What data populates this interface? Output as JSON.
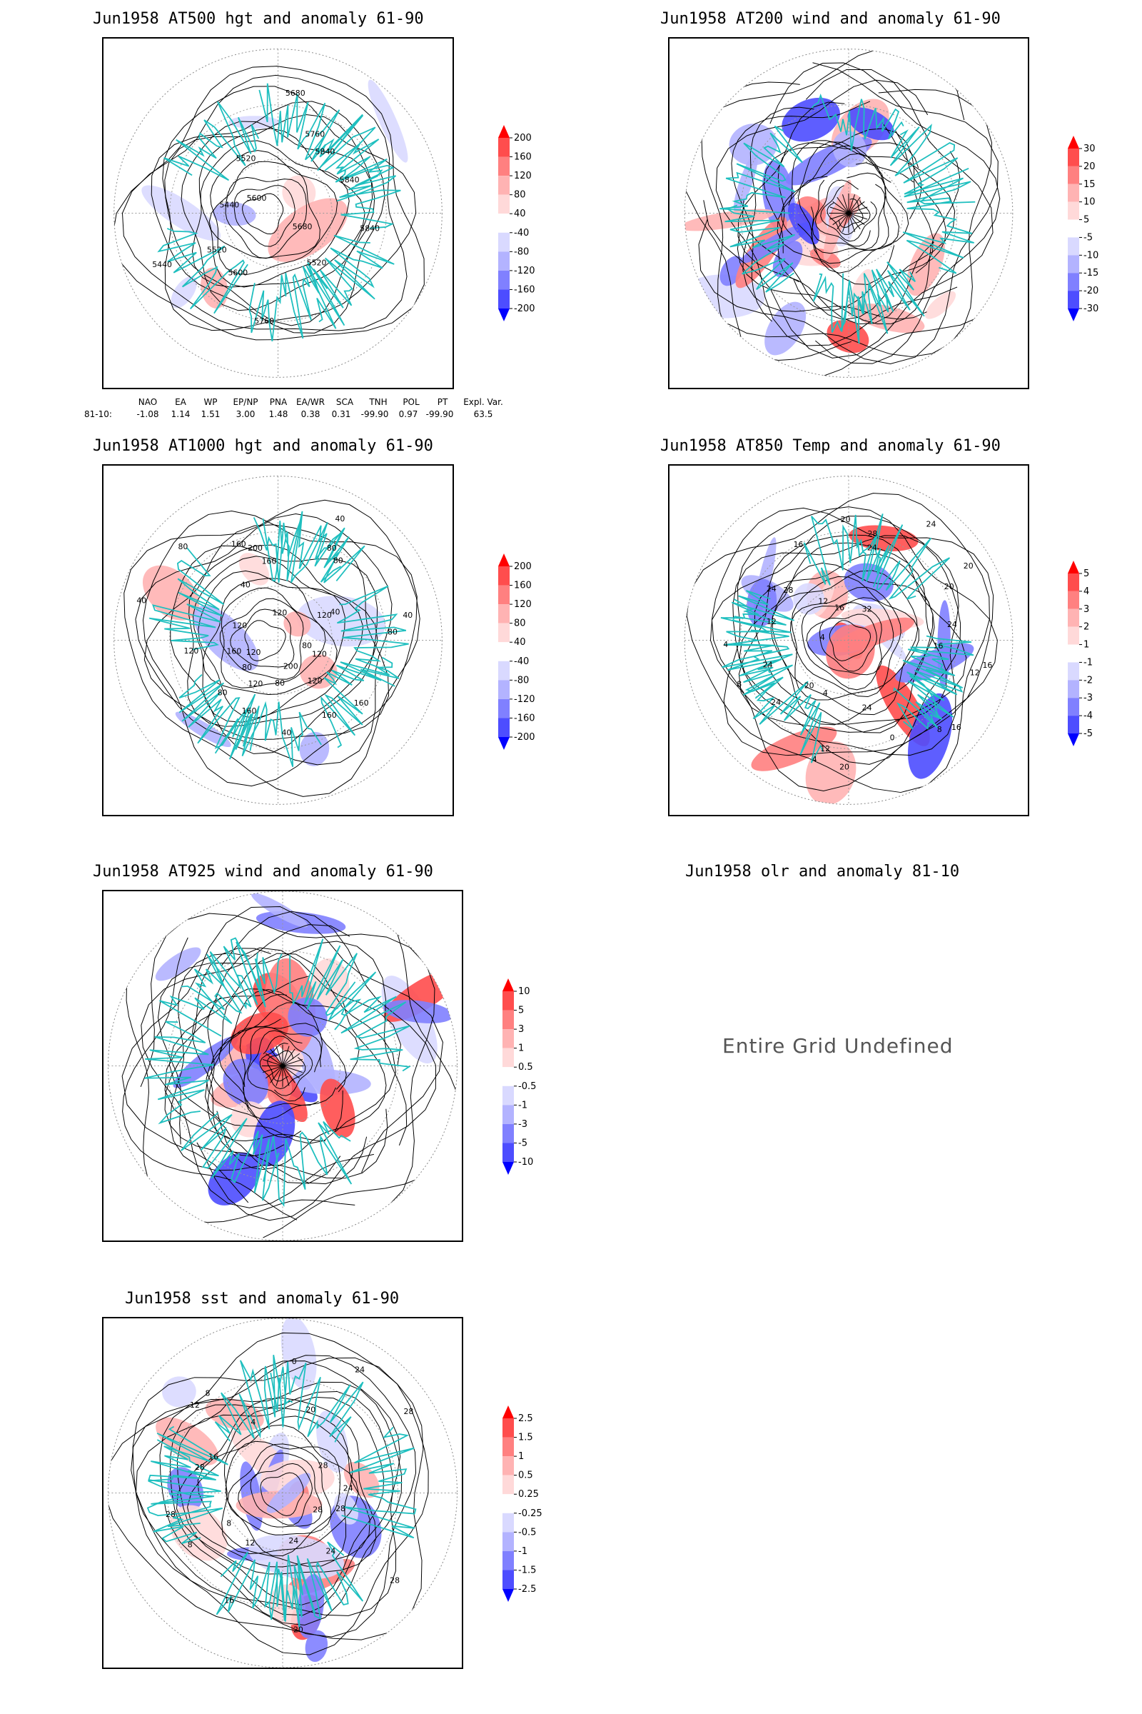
{
  "panels": {
    "p500": {
      "title": "Jun1958 AT500 hgt and anomaly 61-90",
      "labels": [
        "5840",
        "5680",
        "5520",
        "5760",
        "5600",
        "5520",
        "5440",
        "5440",
        "5600",
        "5520",
        "5680",
        "5760",
        "5840",
        "5840"
      ],
      "colorbar": [
        "200",
        "160",
        "120",
        "80",
        "40",
        "-40",
        "-80",
        "-120",
        "-160",
        "-200"
      ]
    },
    "p200": {
      "title": "Jun1958 AT200 wind and anomaly 61-90",
      "colorbar": [
        "30",
        "20",
        "15",
        "10",
        "5",
        "-5",
        "-10",
        "-15",
        "-20",
        "-30"
      ]
    },
    "p1000": {
      "title": "Jun1958 AT1000 hgt and anomaly 61-90",
      "labels": [
        "80",
        "120",
        "160",
        "160",
        "120",
        "200",
        "80",
        "40",
        "160",
        "120",
        "80",
        "80",
        "120",
        "160",
        "120",
        "40",
        "120",
        "80",
        "40",
        "160",
        "200",
        "160",
        "120",
        "40",
        "80",
        "80",
        "120",
        "40",
        "80",
        "40"
      ],
      "colorbar": [
        "200",
        "160",
        "120",
        "80",
        "40",
        "-40",
        "-80",
        "-120",
        "-160",
        "-200"
      ]
    },
    "p850": {
      "title": "Jun1958 AT850 Temp and anomaly 61-90",
      "labels": [
        "16",
        "12",
        "16",
        "8",
        "0",
        "24",
        "20",
        "12",
        "4",
        "4",
        "20",
        "24",
        "24",
        "8",
        "4",
        "4",
        "12",
        "28",
        "24",
        "16",
        "12",
        "16",
        "20",
        "24",
        "28",
        "32",
        "24",
        "20",
        "20",
        "24",
        "16"
      ],
      "colorbar": [
        "5",
        "4",
        "3",
        "2",
        "1",
        "-1",
        "-2",
        "-3",
        "-4",
        "-5"
      ]
    },
    "p925": {
      "title": "Jun1958 AT925 wind and anomaly 61-90",
      "colorbar": [
        "10",
        "5",
        "3",
        "1",
        "0.5",
        "-0.5",
        "-1",
        "-3",
        "-5",
        "-10"
      ]
    },
    "polr": {
      "title": "Jun1958 olr and anomaly 81-10",
      "message": "Entire Grid Undefined"
    },
    "psst": {
      "title": "Jun1958 sst and anomaly 61-90",
      "labels": [
        "28",
        "28",
        "28",
        "24",
        "24",
        "20",
        "16",
        "12",
        "8",
        "8",
        "28",
        "28",
        "16",
        "12",
        "8",
        "4",
        "0",
        "20",
        "24",
        "28",
        "28",
        "24"
      ],
      "colorbar": [
        "2.5",
        "1.5",
        "1",
        "0.5",
        "0.25",
        "-0.25",
        "-0.5",
        "-1",
        "-1.5",
        "-2.5"
      ]
    }
  },
  "indices": {
    "headers": [
      "NAO",
      "EA",
      "WP",
      "EP/NP",
      "PNA",
      "EA/WR",
      "SCA",
      "TNH",
      "POL",
      "PT",
      "Expl. Var."
    ],
    "row_label": "81-10:",
    "values": [
      "-1.08",
      "1.14",
      "1.51",
      "3.00",
      "1.48",
      "0.38",
      "0.31",
      "-99.90",
      "0.97",
      "-99.90",
      "63.5"
    ]
  },
  "colors": {
    "coast": "#1fbfbf",
    "contour": "#000000",
    "pos": [
      "#ffd9d9",
      "#ffb3b3",
      "#ff8080",
      "#ff4d4d",
      "#ff0000"
    ],
    "neg": [
      "#d9d9ff",
      "#b3b3ff",
      "#8080ff",
      "#4d4dff",
      "#0000ff"
    ]
  }
}
